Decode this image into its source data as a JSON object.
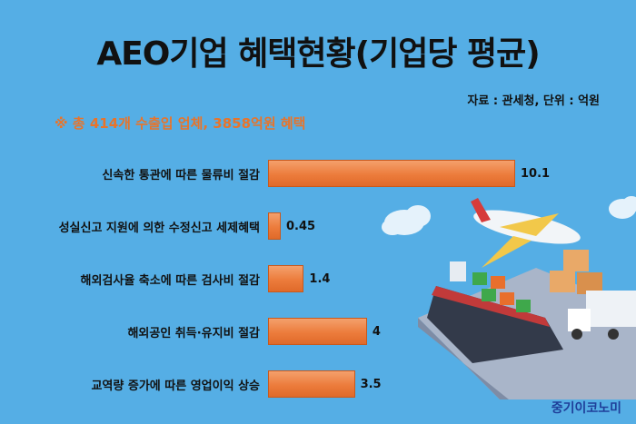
{
  "header": {
    "title": "AEO기업 혜택현황(기업당 평균)",
    "source": "자료 : 관세청, 단위 : 억원",
    "note": "※ 총 414개 수출입 업체, 3858억원 혜택"
  },
  "brand": "중기이코노미",
  "colors": {
    "background": "#55aee5",
    "bar": "#ec7c3c",
    "note": "#e8742a"
  },
  "chart_data": {
    "type": "bar",
    "orientation": "horizontal",
    "title": "AEO기업 혜택현황(기업당 평균)",
    "categories": [
      "신속한 통관에 따른 물류비 절감",
      "성실신고 지원에 의한 수정신고 세제혜택",
      "해외검사율 축소에 따른 검사비 절감",
      "해외공인 취득·유지비 절감",
      "교역량 증가에 따른 영업이익 상승"
    ],
    "values": [
      10.1,
      0.45,
      1.4,
      4,
      3.5
    ],
    "value_labels": [
      "10.1",
      "0.45",
      "1.4",
      "4",
      "3.5"
    ],
    "grid": false,
    "legend": "none"
  }
}
